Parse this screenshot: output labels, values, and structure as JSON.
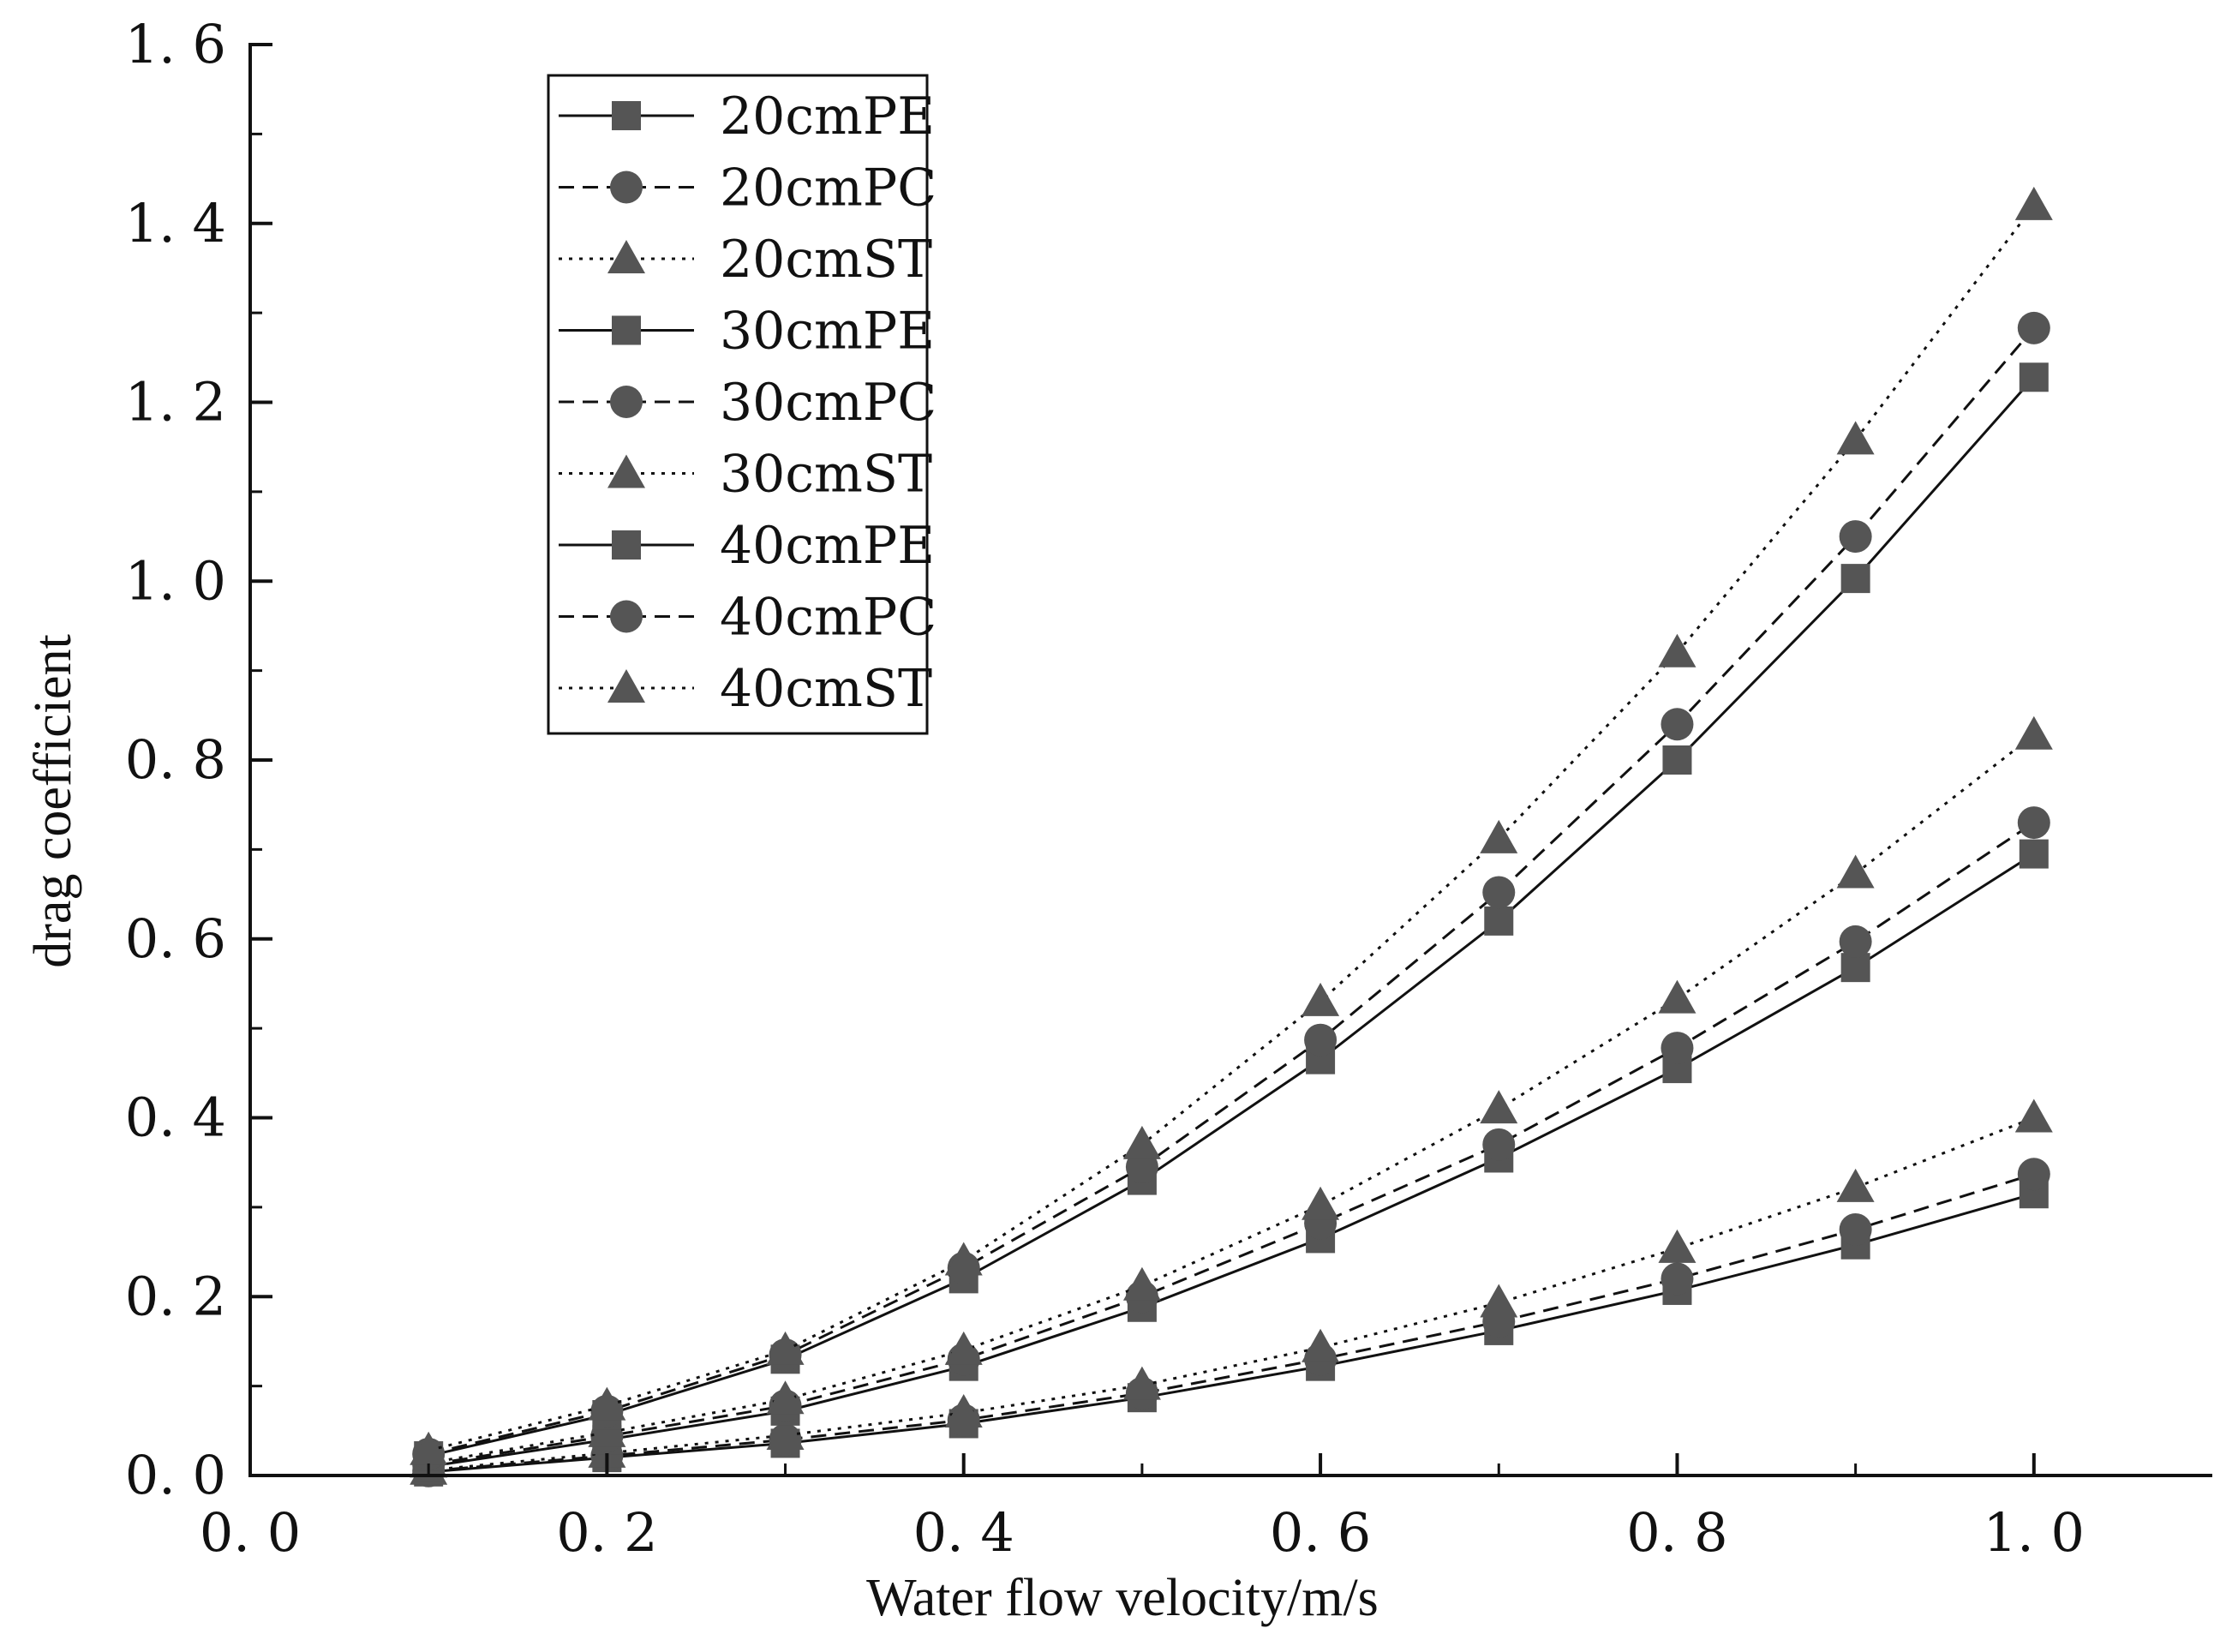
{
  "colors": {
    "marker": "#555555",
    "line": "#111111",
    "axis": "#111111",
    "background": "#ffffff"
  },
  "chart_data": {
    "type": "line",
    "xlabel": "Water flow velocity/m/s",
    "ylabel": "drag coefficient",
    "xlim": [
      0.0,
      1.1
    ],
    "ylim": [
      0.0,
      1.6
    ],
    "x_ticks": [
      0.0,
      0.2,
      0.4,
      0.6,
      0.8,
      1.0
    ],
    "x_tick_labels": [
      "0. 0",
      "0. 2",
      "0. 4",
      "0. 6",
      "0. 8",
      "1. 0"
    ],
    "y_ticks": [
      0.0,
      0.2,
      0.4,
      0.6,
      0.8,
      1.0,
      1.2,
      1.4,
      1.6
    ],
    "y_tick_labels": [
      "0. 0",
      "0. 2",
      "0. 4",
      "0. 6",
      "0. 8",
      "1. 0",
      "1. 2",
      "1. 4",
      "1. 6"
    ],
    "grid": false,
    "legend_position": "top-left",
    "x": [
      0.1,
      0.2,
      0.3,
      0.4,
      0.5,
      0.6,
      0.7,
      0.8,
      0.9,
      1.0
    ],
    "series": [
      {
        "name": "20cmPE",
        "marker": "square",
        "dash": "solid",
        "values": [
          0.004,
          0.02,
          0.036,
          0.058,
          0.087,
          0.122,
          0.162,
          0.207,
          0.258,
          0.315
        ]
      },
      {
        "name": "20cmPC",
        "marker": "circle",
        "dash": "dashed",
        "values": [
          0.005,
          0.022,
          0.04,
          0.062,
          0.092,
          0.13,
          0.172,
          0.22,
          0.275,
          0.337
        ]
      },
      {
        "name": "20cmST",
        "marker": "triangle",
        "dash": "dotted",
        "values": [
          0.006,
          0.025,
          0.045,
          0.07,
          0.101,
          0.143,
          0.193,
          0.254,
          0.322,
          0.4
        ]
      },
      {
        "name": "30cmPE",
        "marker": "square",
        "dash": "solid",
        "values": [
          0.01,
          0.04,
          0.072,
          0.122,
          0.188,
          0.265,
          0.355,
          0.455,
          0.568,
          0.695
        ]
      },
      {
        "name": "30cmPC",
        "marker": "circle",
        "dash": "dashed",
        "values": [
          0.012,
          0.044,
          0.078,
          0.13,
          0.2,
          0.282,
          0.37,
          0.478,
          0.597,
          0.73
        ]
      },
      {
        "name": "30cmST",
        "marker": "triangle",
        "dash": "dotted",
        "values": [
          0.014,
          0.048,
          0.085,
          0.14,
          0.212,
          0.302,
          0.41,
          0.533,
          0.673,
          0.828
        ]
      },
      {
        "name": "40cmPE",
        "marker": "square",
        "dash": "solid",
        "values": [
          0.022,
          0.068,
          0.13,
          0.22,
          0.33,
          0.465,
          0.62,
          0.8,
          1.003,
          1.228
        ]
      },
      {
        "name": "40cmPC",
        "marker": "circle",
        "dash": "dashed",
        "values": [
          0.024,
          0.072,
          0.135,
          0.232,
          0.345,
          0.487,
          0.652,
          0.84,
          1.05,
          1.283
        ]
      },
      {
        "name": "40cmST",
        "marker": "triangle",
        "dash": "dotted",
        "values": [
          0.028,
          0.078,
          0.14,
          0.24,
          0.37,
          0.53,
          0.712,
          0.92,
          1.158,
          1.42
        ]
      }
    ]
  }
}
